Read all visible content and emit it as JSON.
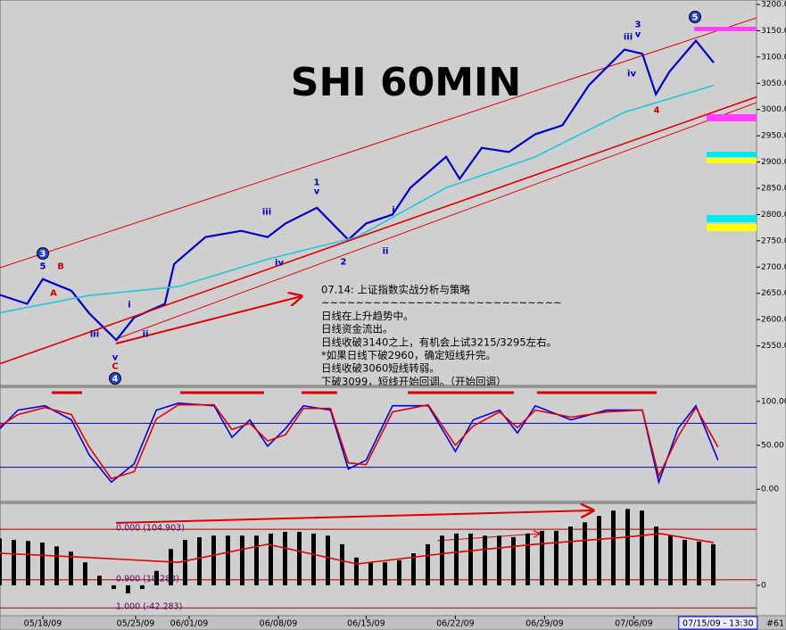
{
  "chart_data": [
    {
      "type": "line",
      "title": "SHI 60MIN",
      "xlim": [
        0,
        106
      ],
      "ylim": [
        2500,
        3200
      ],
      "yticks": [
        {
          "value": 2550,
          "label": "2550.0"
        },
        {
          "value": 2600,
          "label": "2600.0"
        },
        {
          "value": 2650,
          "label": "2650.0"
        },
        {
          "value": 2700,
          "label": "2700.0"
        },
        {
          "value": 2750,
          "label": "2750.0"
        },
        {
          "value": 2800,
          "label": "2800.0"
        },
        {
          "value": 2850,
          "label": "2850.0"
        },
        {
          "value": 2900,
          "label": "2900.0"
        },
        {
          "value": 2950,
          "label": "2950.0"
        },
        {
          "value": 3000,
          "label": "3000.0"
        },
        {
          "value": 3050,
          "label": "3050.0"
        },
        {
          "value": 3100,
          "label": "3100.0"
        },
        {
          "value": 3150,
          "label": "3150.0"
        },
        {
          "value": 3200,
          "label": "3200.0"
        }
      ],
      "series": [
        {
          "color": "#0000c8",
          "x": [
            0,
            3.8,
            6,
            10,
            12.5,
            16.3,
            18.8,
            23.1,
            24.4,
            28.8,
            33.8,
            37.5,
            40,
            44.4,
            48.8,
            51.3,
            55,
            57.5,
            62.5,
            64.4,
            67.5,
            71.3,
            75,
            78.8,
            82.5,
            87.5,
            90,
            91.9,
            93.8,
            97.5,
            100
          ],
          "values": [
            2647,
            2630,
            2677,
            2655,
            2612,
            2561,
            2604,
            2630,
            2706,
            2757,
            2769,
            2757,
            2783,
            2813,
            2752,
            2783,
            2800,
            2851,
            2910,
            2868,
            2927,
            2919,
            2953,
            2970,
            3046,
            3114,
            3106,
            3029,
            3072,
            3131,
            3089
          ]
        },
        {
          "color": "#20c8d8",
          "x": [
            0,
            12.5,
            25,
            37.5,
            50,
            62.5,
            75,
            87.5,
            100
          ],
          "values": [
            2613,
            2646,
            2663,
            2715,
            2757,
            2851,
            2910,
            2995,
            3046
          ]
        },
        {
          "color": "#e00000",
          "x": [
            0,
            106
          ],
          "values": [
            2516,
            3024
          ]
        }
      ],
      "annotations": [
        "07.14: 上证指数实战分析与策略",
        "~~~~~~~~~~~~~~~~~~~~~~~~~~~~",
        "日线在上升趋势中。",
        "日线资金流出。",
        "日线收破3140之上，有机会上试3215/3295左右。",
        "*如果日线下破2960，确定短线升完。",
        "日线收破3060短线转弱。",
        "下破3099，短线开始回调。（开始回调）"
      ],
      "wave_labels": [
        "3",
        "5",
        "B",
        "A",
        "iii",
        "i",
        "ii",
        "v",
        "C",
        "4",
        "iii",
        "iv",
        "1",
        "v",
        "2",
        "i",
        "ii",
        "iii",
        "3",
        "v",
        "iv",
        "4",
        "5"
      ]
    },
    {
      "type": "line",
      "xlim": [
        0,
        106
      ],
      "ylim": [
        -14,
        113
      ],
      "yticks": [
        {
          "value": 0,
          "label": "0.00"
        },
        {
          "value": 50,
          "label": "50.00"
        },
        {
          "value": 100,
          "label": "100.00"
        }
      ],
      "levels": [
        25,
        75
      ],
      "series": [
        {
          "color": "#0000e0",
          "x": [
            0,
            2.5,
            6.3,
            10,
            12.5,
            15.6,
            18.8,
            21.9,
            25,
            30,
            32.5,
            35,
            37.5,
            40,
            42.5,
            46.3,
            48.8,
            51.3,
            55,
            60,
            63.8,
            66.3,
            70,
            72.5,
            75,
            80,
            85,
            90,
            92.3,
            95,
            97.5,
            100.6
          ],
          "values": [
            69,
            90,
            95,
            79,
            39,
            8,
            29,
            90,
            98,
            95,
            59,
            79,
            49,
            69,
            95,
            90,
            23,
            33,
            95,
            95,
            43,
            79,
            90,
            64,
            95,
            79,
            90,
            90,
            8,
            69,
            95,
            33
          ]
        },
        {
          "color": "#e00000",
          "x": [
            0,
            2.5,
            6.3,
            10,
            12.5,
            15.6,
            18.8,
            21.9,
            25,
            30,
            32.5,
            35,
            37.5,
            40,
            42.5,
            46.3,
            48.8,
            51.3,
            55,
            60,
            63.8,
            66.3,
            70,
            72.5,
            75,
            80,
            85,
            90,
            92.3,
            95,
            97.5,
            100.6
          ],
          "values": [
            72,
            85,
            93,
            85,
            48,
            12,
            20,
            80,
            96,
            96,
            68,
            75,
            55,
            62,
            92,
            92,
            30,
            28,
            88,
            96,
            50,
            72,
            88,
            70,
            90,
            82,
            88,
            90,
            15,
            60,
            93,
            48
          ]
        }
      ]
    },
    {
      "type": "bar",
      "xlim": [
        0,
        106
      ],
      "ylim": [
        -57,
        152
      ],
      "yticks": [
        0
      ],
      "xticks": [
        {
          "value": 6,
          "label": "05/18/09"
        },
        {
          "value": 19,
          "label": "05/25/09"
        },
        {
          "value": 26.5,
          "label": "06/01/09"
        },
        {
          "value": 39,
          "label": "06/08/09"
        },
        {
          "value": 51.3,
          "label": "06/15/09"
        },
        {
          "value": 63.8,
          "label": "06/22/09"
        },
        {
          "value": 76.3,
          "label": "06/29/09"
        },
        {
          "value": 88.8,
          "label": "07/06/09"
        },
        {
          "value": 100.6,
          "label": "07/15/09 - 13:30"
        }
      ],
      "color": "#000000",
      "x": [
        0,
        2,
        4,
        6,
        8,
        10,
        12,
        14,
        16,
        18,
        20,
        22,
        24,
        26,
        28,
        30,
        32,
        34,
        36,
        38,
        40,
        42,
        44,
        46,
        48,
        50,
        52,
        54,
        56,
        58,
        60,
        62,
        64,
        66,
        68,
        70,
        72,
        74,
        76,
        78,
        80,
        82,
        84,
        86,
        88,
        90,
        92,
        94,
        96,
        98,
        100
      ],
      "values": [
        88,
        85,
        83,
        80,
        73,
        63,
        43,
        18,
        -7,
        -15,
        -7,
        27,
        68,
        85,
        90,
        93,
        93,
        93,
        93,
        97,
        100,
        100,
        97,
        93,
        77,
        52,
        43,
        43,
        47,
        60,
        77,
        93,
        97,
        97,
        93,
        93,
        90,
        97,
        102,
        102,
        110,
        118,
        130,
        140,
        143,
        140,
        110,
        93,
        85,
        82,
        77
      ],
      "series": [
        {
          "color": "#e00000",
          "x": [
            0,
            12.5,
            25,
            37.5,
            50,
            62.5,
            75,
            87.5,
            92.5,
            100
          ],
          "values": [
            60,
            52,
            43,
            77,
            40,
            60,
            77,
            90,
            97,
            80
          ]
        }
      ],
      "levels": [
        {
          "value": 104.903,
          "label": "0.000 (104.903)"
        },
        {
          "value": 10.283,
          "label": "0.900 (10.283)"
        },
        {
          "value": -42.283,
          "label": "1.000 (-42.283)"
        }
      ],
      "note": "#61"
    }
  ]
}
